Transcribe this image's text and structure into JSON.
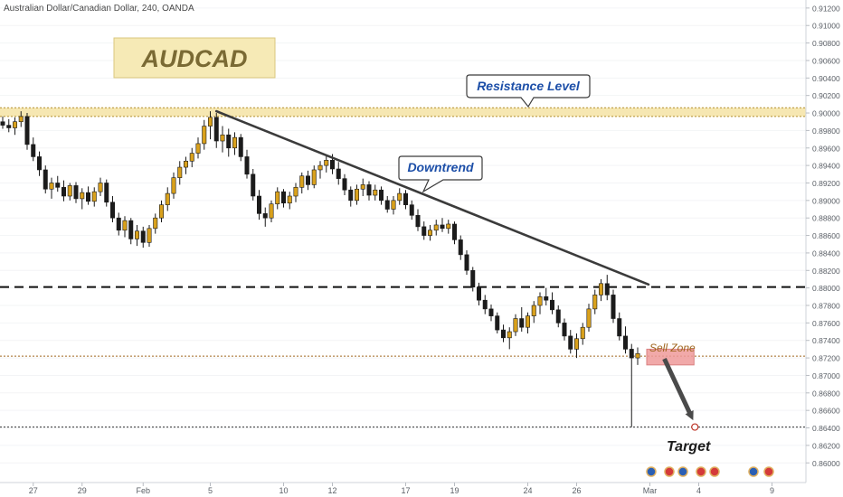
{
  "header": {
    "symbol_line": "Australian Dollar/Canadian Dollar, 240, OANDA"
  },
  "labels": {
    "title_box": "AUDCAD",
    "resistance": "Resistance Level",
    "downtrend": "Downtrend",
    "sell_zone": "Sell Zone",
    "target": "Target"
  },
  "colors": {
    "bull": "#d9a11c",
    "bear": "#1b1b1b",
    "title_bg": "#f6eab6",
    "title_text": "#7a6a34",
    "resistance_band": "#f6e7b2",
    "sell_zone_fill": "#ef9a9a",
    "sell_zone_text": "#a0651e",
    "callout_text": "#1d4fa8",
    "trendline": "#3b3b3b",
    "arrow": "#4a4a4a"
  },
  "chart_data": {
    "type": "candlestick",
    "title": "Australian Dollar/Canadian Dollar, 240, OANDA",
    "y_axis": {
      "min": 0.8592,
      "max": 0.9124,
      "ticks": [
        "0.91200",
        "0.91000",
        "0.90800",
        "0.90600",
        "0.90400",
        "0.90200",
        "0.90000",
        "0.89800",
        "0.89600",
        "0.89400",
        "0.89200",
        "0.89000",
        "0.88800",
        "0.88600",
        "0.88400",
        "0.88200",
        "0.88000",
        "0.87800",
        "0.87600",
        "0.87400",
        "0.87200",
        "0.87000",
        "0.86800",
        "0.86600",
        "0.86400",
        "0.86200",
        "0.86000"
      ]
    },
    "x_axis": {
      "ticks": [
        {
          "label": "27",
          "bar": 5
        },
        {
          "label": "29",
          "bar": 13
        },
        {
          "label": "Feb",
          "bar": 23
        },
        {
          "label": "5",
          "bar": 34
        },
        {
          "label": "10",
          "bar": 46
        },
        {
          "label": "12",
          "bar": 54
        },
        {
          "label": "17",
          "bar": 66
        },
        {
          "label": "19",
          "bar": 74
        },
        {
          "label": "24",
          "bar": 86
        },
        {
          "label": "26",
          "bar": 94
        },
        {
          "label": "Mar",
          "bar": 106
        },
        {
          "label": "4",
          "bar": 114
        },
        {
          "label": "9",
          "bar": 126
        }
      ]
    },
    "levels": [
      {
        "name": "Resistance Level",
        "band": [
          0.8996,
          0.9006
        ],
        "style": "dotted-band"
      },
      {
        "name": "",
        "value": 0.8801,
        "style": "dashed"
      },
      {
        "name": "",
        "value": 0.8722,
        "style": "dotted"
      },
      {
        "name": "Target",
        "value": 0.8641,
        "style": "dotted"
      }
    ],
    "trendline": {
      "from": {
        "bar": 35,
        "price": 0.9002
      },
      "to": {
        "bar": 104,
        "price": 0.8804
      }
    },
    "sell_zone": {
      "bar_from": 104,
      "bar_to": 111,
      "price_from": 0.8712,
      "price_to": 0.873
    },
    "arrow": {
      "from": {
        "bar": 106,
        "price": 0.8719
      },
      "to": {
        "bar": 111,
        "price": 0.8643
      }
    },
    "candles": [
      [
        0.899,
        0.8996,
        0.8982,
        0.8986
      ],
      [
        0.8986,
        0.8993,
        0.8978,
        0.8983
      ],
      [
        0.8983,
        0.8995,
        0.8975,
        0.899
      ],
      [
        0.899,
        0.9002,
        0.8984,
        0.8996
      ],
      [
        0.8996,
        0.9,
        0.8958,
        0.8964
      ],
      [
        0.8964,
        0.8972,
        0.8945,
        0.895
      ],
      [
        0.895,
        0.8956,
        0.8928,
        0.8935
      ],
      [
        0.8935,
        0.894,
        0.8908,
        0.8913
      ],
      [
        0.8913,
        0.8926,
        0.8902,
        0.892
      ],
      [
        0.892,
        0.8928,
        0.891,
        0.8915
      ],
      [
        0.8915,
        0.8923,
        0.8899,
        0.8905
      ],
      [
        0.8905,
        0.892,
        0.89,
        0.8917
      ],
      [
        0.8917,
        0.8921,
        0.8897,
        0.8902
      ],
      [
        0.8902,
        0.8914,
        0.889,
        0.8909
      ],
      [
        0.8909,
        0.8916,
        0.8895,
        0.8899
      ],
      [
        0.8899,
        0.8915,
        0.8893,
        0.891
      ],
      [
        0.891,
        0.8926,
        0.8905,
        0.892
      ],
      [
        0.892,
        0.8924,
        0.8893,
        0.8898
      ],
      [
        0.8898,
        0.8905,
        0.8875,
        0.888
      ],
      [
        0.888,
        0.8886,
        0.886,
        0.8866
      ],
      [
        0.8866,
        0.8882,
        0.8858,
        0.8877
      ],
      [
        0.8877,
        0.888,
        0.885,
        0.8856
      ],
      [
        0.8856,
        0.8872,
        0.8848,
        0.8865
      ],
      [
        0.8865,
        0.887,
        0.8846,
        0.8852
      ],
      [
        0.8852,
        0.8872,
        0.8847,
        0.8868
      ],
      [
        0.8868,
        0.8885,
        0.8862,
        0.888
      ],
      [
        0.888,
        0.89,
        0.8875,
        0.8895
      ],
      [
        0.8895,
        0.8915,
        0.8888,
        0.8908
      ],
      [
        0.8908,
        0.8932,
        0.8902,
        0.8926
      ],
      [
        0.8926,
        0.8945,
        0.8918,
        0.8938
      ],
      [
        0.8938,
        0.895,
        0.893,
        0.8945
      ],
      [
        0.8945,
        0.896,
        0.8938,
        0.8954
      ],
      [
        0.8954,
        0.8972,
        0.8948,
        0.8965
      ],
      [
        0.8965,
        0.8992,
        0.8958,
        0.8985
      ],
      [
        0.8985,
        0.9002,
        0.897,
        0.8995
      ],
      [
        0.8995,
        0.9,
        0.896,
        0.8968
      ],
      [
        0.8968,
        0.8985,
        0.8955,
        0.8975
      ],
      [
        0.8975,
        0.8982,
        0.895,
        0.896
      ],
      [
        0.896,
        0.8978,
        0.8952,
        0.8972
      ],
      [
        0.8972,
        0.8976,
        0.8945,
        0.895
      ],
      [
        0.895,
        0.8958,
        0.8925,
        0.893
      ],
      [
        0.893,
        0.8936,
        0.89,
        0.8905
      ],
      [
        0.8905,
        0.8912,
        0.8878,
        0.8885
      ],
      [
        0.8885,
        0.8892,
        0.887,
        0.888
      ],
      [
        0.888,
        0.89,
        0.8875,
        0.8896
      ],
      [
        0.8896,
        0.8915,
        0.889,
        0.891
      ],
      [
        0.891,
        0.8913,
        0.8892,
        0.8897
      ],
      [
        0.8897,
        0.891,
        0.889,
        0.8905
      ],
      [
        0.8905,
        0.892,
        0.8898,
        0.8915
      ],
      [
        0.8915,
        0.8932,
        0.8908,
        0.8928
      ],
      [
        0.8928,
        0.8934,
        0.8912,
        0.8918
      ],
      [
        0.8918,
        0.894,
        0.8914,
        0.8935
      ],
      [
        0.8935,
        0.8945,
        0.8925,
        0.894
      ],
      [
        0.894,
        0.8952,
        0.8932,
        0.8946
      ],
      [
        0.8946,
        0.8953,
        0.893,
        0.8936
      ],
      [
        0.8936,
        0.8944,
        0.8918,
        0.8925
      ],
      [
        0.8925,
        0.893,
        0.8906,
        0.8912
      ],
      [
        0.8912,
        0.8916,
        0.8893,
        0.89
      ],
      [
        0.89,
        0.8918,
        0.8895,
        0.8913
      ],
      [
        0.8913,
        0.8925,
        0.8905,
        0.8918
      ],
      [
        0.8918,
        0.8922,
        0.89,
        0.8906
      ],
      [
        0.8906,
        0.8918,
        0.89,
        0.8912
      ],
      [
        0.8912,
        0.8916,
        0.8895,
        0.89
      ],
      [
        0.89,
        0.8905,
        0.8886,
        0.889
      ],
      [
        0.889,
        0.8905,
        0.8884,
        0.89
      ],
      [
        0.89,
        0.8914,
        0.8895,
        0.8908
      ],
      [
        0.8908,
        0.8912,
        0.889,
        0.8895
      ],
      [
        0.8895,
        0.89,
        0.8878,
        0.8883
      ],
      [
        0.8883,
        0.889,
        0.8865,
        0.887
      ],
      [
        0.887,
        0.8876,
        0.8855,
        0.886
      ],
      [
        0.886,
        0.8872,
        0.8854,
        0.8866
      ],
      [
        0.8866,
        0.8878,
        0.886,
        0.8872
      ],
      [
        0.8872,
        0.888,
        0.8864,
        0.8868
      ],
      [
        0.8868,
        0.8878,
        0.8862,
        0.8873
      ],
      [
        0.8873,
        0.8876,
        0.885,
        0.8855
      ],
      [
        0.8855,
        0.886,
        0.8832,
        0.8838
      ],
      [
        0.8838,
        0.8843,
        0.8815,
        0.882
      ],
      [
        0.882,
        0.8824,
        0.8796,
        0.8801
      ],
      [
        0.8801,
        0.8806,
        0.878,
        0.8786
      ],
      [
        0.8786,
        0.8792,
        0.877,
        0.8776
      ],
      [
        0.8776,
        0.8781,
        0.8762,
        0.8768
      ],
      [
        0.8768,
        0.8772,
        0.8748,
        0.8752
      ],
      [
        0.8752,
        0.8758,
        0.8738,
        0.8743
      ],
      [
        0.8743,
        0.8755,
        0.873,
        0.875
      ],
      [
        0.875,
        0.877,
        0.8745,
        0.8765
      ],
      [
        0.8765,
        0.8778,
        0.875,
        0.8755
      ],
      [
        0.8755,
        0.8772,
        0.8748,
        0.8768
      ],
      [
        0.8768,
        0.8785,
        0.876,
        0.878
      ],
      [
        0.878,
        0.8795,
        0.877,
        0.879
      ],
      [
        0.879,
        0.88,
        0.878,
        0.8786
      ],
      [
        0.8786,
        0.8795,
        0.877,
        0.8775
      ],
      [
        0.8775,
        0.878,
        0.8755,
        0.876
      ],
      [
        0.876,
        0.8765,
        0.874,
        0.8745
      ],
      [
        0.8745,
        0.8752,
        0.8725,
        0.873
      ],
      [
        0.873,
        0.8748,
        0.872,
        0.8742
      ],
      [
        0.8742,
        0.876,
        0.8735,
        0.8755
      ],
      [
        0.8755,
        0.8782,
        0.875,
        0.8776
      ],
      [
        0.8776,
        0.8798,
        0.877,
        0.8792
      ],
      [
        0.8792,
        0.881,
        0.8785,
        0.8805
      ],
      [
        0.8805,
        0.8815,
        0.8786,
        0.8792
      ],
      [
        0.8792,
        0.8798,
        0.876,
        0.8765
      ],
      [
        0.8765,
        0.8772,
        0.874,
        0.8745
      ],
      [
        0.8745,
        0.8756,
        0.8725,
        0.873
      ],
      [
        0.873,
        0.8736,
        0.8641,
        0.872
      ],
      [
        0.872,
        0.8732,
        0.8712,
        0.8725
      ]
    ]
  }
}
